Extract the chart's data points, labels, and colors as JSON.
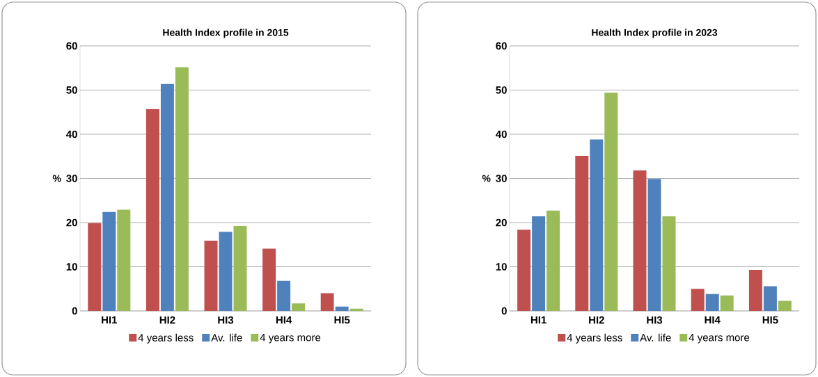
{
  "chart_data": [
    {
      "type": "bar",
      "title": "Health Index profile in 2015",
      "ylabel": "%",
      "categories": [
        "HI1",
        "HI2",
        "HI3",
        "HI4",
        "HI5"
      ],
      "series": [
        {
          "name": "4 years less",
          "color": "#c0504d",
          "values": [
            19.9,
            45.7,
            15.9,
            14.1,
            4.0
          ]
        },
        {
          "name": "Av. life",
          "color": "#4f81bd",
          "values": [
            22.4,
            51.4,
            17.9,
            6.8,
            1.0
          ]
        },
        {
          "name": "4 years more",
          "color": "#9bbb59",
          "values": [
            22.9,
            55.2,
            19.2,
            1.7,
            0.5
          ]
        }
      ],
      "ylim": [
        0,
        60
      ],
      "yticks": [
        0,
        10,
        20,
        30,
        40,
        50,
        60
      ],
      "grid": "y",
      "legend": "bottom"
    },
    {
      "type": "bar",
      "title": "Health Index profile in 2023",
      "ylabel": "%",
      "categories": [
        "HI1",
        "HI2",
        "HI3",
        "HI4",
        "HI5"
      ],
      "series": [
        {
          "name": "4 years less",
          "color": "#c0504d",
          "values": [
            18.4,
            35.1,
            31.8,
            5.0,
            9.3
          ]
        },
        {
          "name": "Av. life",
          "color": "#4f81bd",
          "values": [
            21.4,
            38.8,
            29.9,
            3.8,
            5.6
          ]
        },
        {
          "name": "4 years more",
          "color": "#9bbb59",
          "values": [
            22.7,
            49.4,
            21.4,
            3.5,
            2.3
          ]
        }
      ],
      "ylim": [
        0,
        60
      ],
      "yticks": [
        0,
        10,
        20,
        30,
        40,
        50,
        60
      ],
      "grid": "y",
      "legend": "bottom"
    }
  ]
}
